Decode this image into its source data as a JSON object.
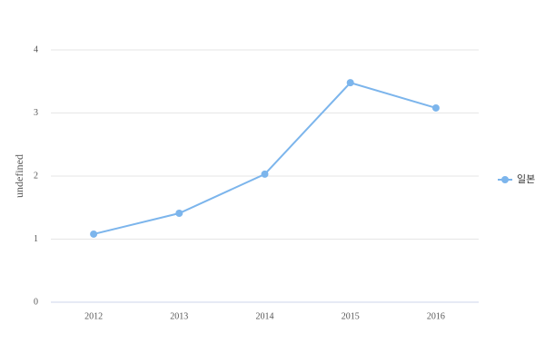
{
  "chart_data": {
    "type": "line",
    "y_label": "undefined",
    "categories": [
      "2012",
      "2013",
      "2014",
      "2015",
      "2016"
    ],
    "series": [
      {
        "name": "일본",
        "color": "#7cb5ec",
        "values": [
          1.08,
          1.41,
          2.03,
          3.48,
          3.08
        ]
      }
    ],
    "ylim": [
      0,
      4
    ],
    "yticks": [
      0,
      1,
      2,
      3,
      4
    ],
    "grid": true,
    "legend": "right"
  }
}
